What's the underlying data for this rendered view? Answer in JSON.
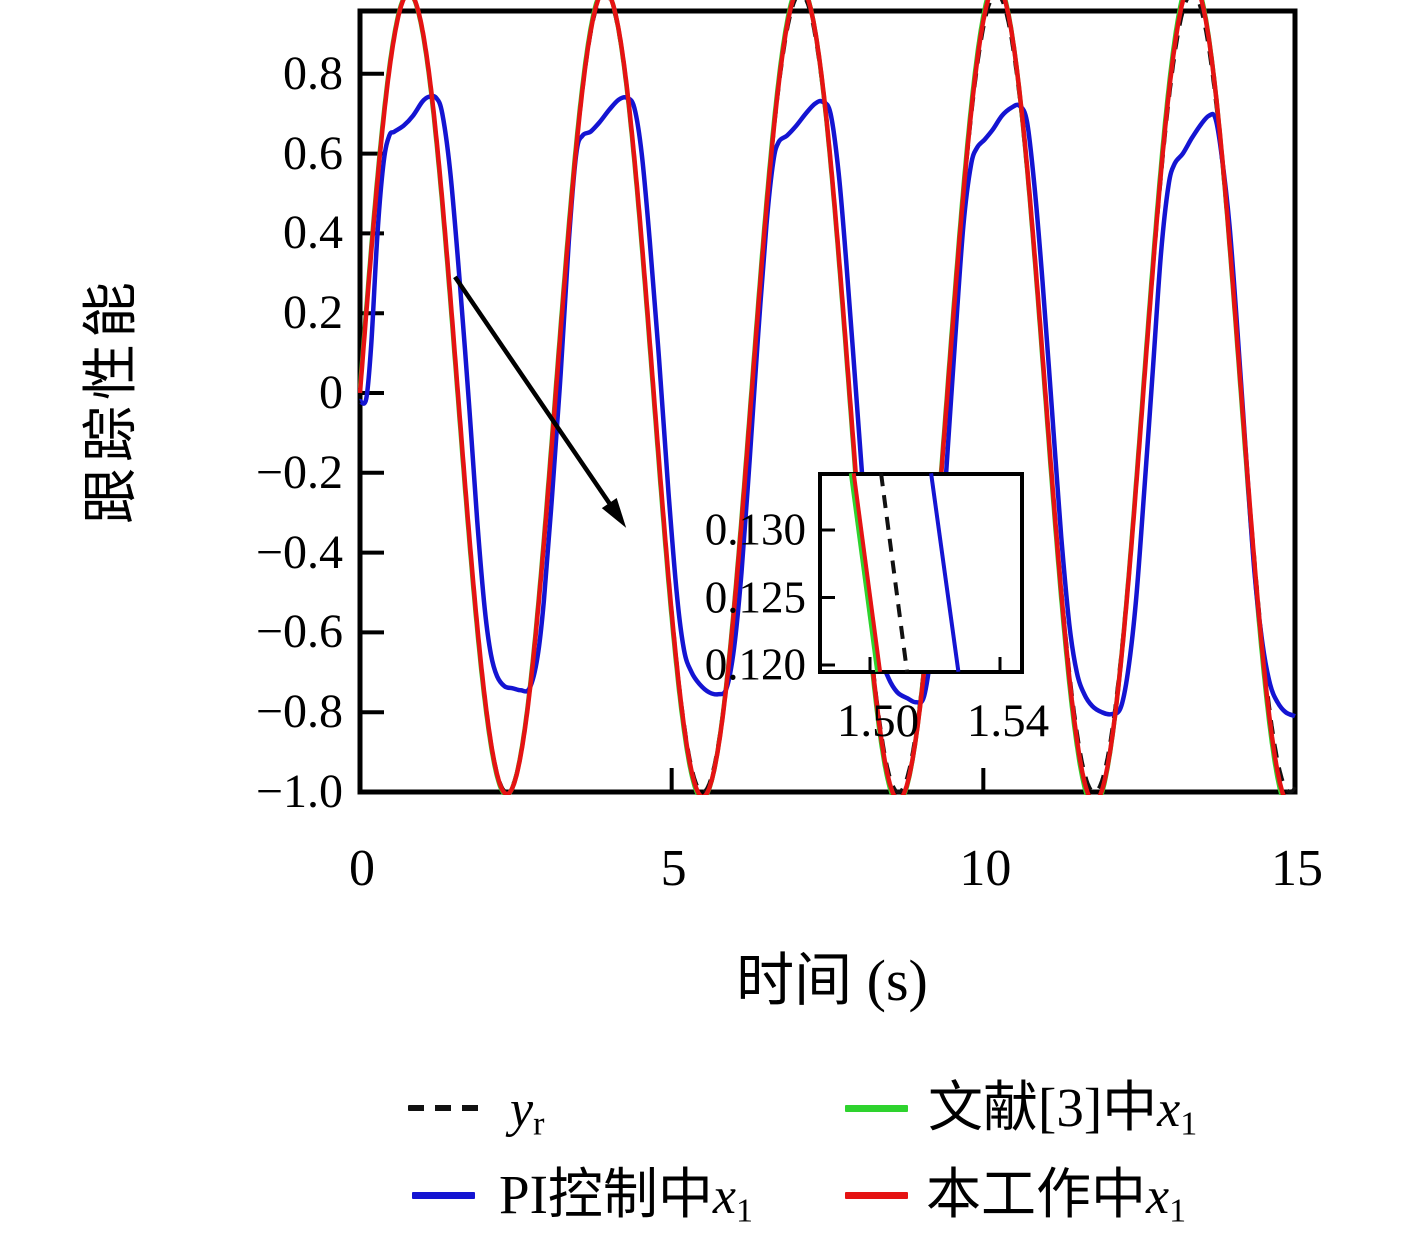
{
  "colors": {
    "reference_dashed": "#111111",
    "ref3_green": "#2ed32e",
    "pi_blue": "#1414d2",
    "thiswork_red": "#e51313",
    "axis": "#000000"
  },
  "axes": {
    "xlabel": "时间 (s)",
    "ylabel": "跟踪性能",
    "xlim": [
      0,
      15
    ],
    "ylim": [
      -1.0,
      0.957
    ],
    "x_ticks": [
      {
        "label": "0",
        "value": 0,
        "mark": false
      },
      {
        "label": "5",
        "value": 5,
        "mark": true
      },
      {
        "label": "10",
        "value": 10,
        "mark": true
      },
      {
        "label": "15",
        "value": 15,
        "mark": false
      }
    ],
    "y_ticks": [
      {
        "label": "0.8",
        "value": 0.8,
        "mark": true
      },
      {
        "label": "0.6",
        "value": 0.6,
        "mark": true
      },
      {
        "label": "0.4",
        "value": 0.4,
        "mark": true
      },
      {
        "label": "0.2",
        "value": 0.2,
        "mark": true
      },
      {
        "label": "0",
        "value": 0.0,
        "mark": true
      },
      {
        "label": "−0.2",
        "value": -0.2,
        "mark": true
      },
      {
        "label": "−0.4",
        "value": -0.4,
        "mark": true
      },
      {
        "label": "−0.6",
        "value": -0.6,
        "mark": true
      },
      {
        "label": "−0.8",
        "value": -0.8,
        "mark": true
      },
      {
        "label": "−1.0",
        "value": -1.0,
        "mark": false
      }
    ]
  },
  "legend": {
    "items": [
      {
        "pre": "",
        "var": "y",
        "sub": "r",
        "style": "dashed",
        "color": "#111111"
      },
      {
        "pre": "文献[3]中",
        "var": "x",
        "sub": "1",
        "style": "solid",
        "color": "#2ed32e"
      },
      {
        "pre": "PI控制中",
        "var": "x",
        "sub": "1",
        "style": "solid",
        "color": "#1414d2"
      },
      {
        "pre": "本工作中",
        "var": "x",
        "sub": "1",
        "style": "solid",
        "color": "#e51313"
      }
    ]
  },
  "chart_data": {
    "type": "line",
    "title": "",
    "xlabel": "时间 (s)",
    "ylabel": "跟踪性能",
    "xlim": [
      0,
      15
    ],
    "ylim": [
      -1.0,
      0.957
    ],
    "grid": false,
    "legend_position": "below",
    "series": [
      {
        "name": "y_r",
        "style": "dashed",
        "color": "#111111",
        "function": "sin(2t)",
        "params": {
          "amp0": 1.0,
          "amp_growth": 0.0,
          "omega": 2.0,
          "phase": 0.0
        }
      },
      {
        "name": "文献[3]中x_1",
        "style": "solid",
        "color": "#2ed32e",
        "function": "(1+0.003t)·sin(2t+0.012), near-perfect tracking of sin(2t)",
        "params": {
          "amp0": 1.0,
          "amp_growth": 0.003,
          "omega": 2.0,
          "phase": 0.012
        }
      },
      {
        "name": "PI控制中x_1",
        "style": "solid",
        "color": "#1414d2",
        "function": "distorted sine, amplitude ≈0.74 decaying to 0.70, lagging reference",
        "keypoints": [
          [
            0,
            -0.02
          ],
          [
            0.1,
            -0.015
          ],
          [
            0.18,
            0.12
          ],
          [
            0.28,
            0.4
          ],
          [
            0.38,
            0.58
          ],
          [
            0.47,
            0.645
          ],
          [
            0.55,
            0.655
          ],
          [
            0.7,
            0.67
          ],
          [
            0.85,
            0.695
          ],
          [
            1.0,
            0.73
          ],
          [
            1.1,
            0.742
          ],
          [
            1.22,
            0.74
          ],
          [
            1.32,
            0.7
          ],
          [
            1.45,
            0.55
          ],
          [
            1.6,
            0.28
          ],
          [
            1.75,
            -0.03
          ],
          [
            1.88,
            -0.32
          ],
          [
            2.0,
            -0.54
          ],
          [
            2.1,
            -0.655
          ],
          [
            2.2,
            -0.71
          ],
          [
            2.32,
            -0.735
          ],
          [
            2.45,
            -0.74
          ],
          [
            2.58,
            -0.745
          ],
          [
            2.72,
            -0.74
          ],
          [
            2.85,
            -0.66
          ],
          [
            2.95,
            -0.52
          ],
          [
            3.08,
            -0.26
          ],
          [
            3.22,
            0.05
          ],
          [
            3.35,
            0.38
          ],
          [
            3.47,
            0.6
          ],
          [
            3.57,
            0.645
          ],
          [
            3.7,
            0.655
          ],
          [
            3.85,
            0.68
          ],
          [
            4.0,
            0.71
          ],
          [
            4.15,
            0.735
          ],
          [
            4.28,
            0.74
          ],
          [
            4.4,
            0.715
          ],
          [
            4.52,
            0.6
          ],
          [
            4.65,
            0.38
          ],
          [
            4.8,
            0.08
          ],
          [
            4.95,
            -0.25
          ],
          [
            5.08,
            -0.5
          ],
          [
            5.2,
            -0.645
          ],
          [
            5.32,
            -0.7
          ],
          [
            5.45,
            -0.73
          ],
          [
            5.6,
            -0.75
          ],
          [
            5.75,
            -0.755
          ],
          [
            5.88,
            -0.74
          ],
          [
            6.0,
            -0.64
          ],
          [
            6.12,
            -0.45
          ],
          [
            6.25,
            -0.17
          ],
          [
            6.38,
            0.13
          ],
          [
            6.52,
            0.42
          ],
          [
            6.63,
            0.58
          ],
          [
            6.72,
            0.63
          ],
          [
            6.85,
            0.645
          ],
          [
            7.0,
            0.67
          ],
          [
            7.15,
            0.7
          ],
          [
            7.3,
            0.725
          ],
          [
            7.42,
            0.73
          ],
          [
            7.55,
            0.7
          ],
          [
            7.68,
            0.55
          ],
          [
            7.8,
            0.33
          ],
          [
            7.95,
            0.02
          ],
          [
            8.1,
            -0.3
          ],
          [
            8.22,
            -0.52
          ],
          [
            8.35,
            -0.655
          ],
          [
            8.48,
            -0.715
          ],
          [
            8.62,
            -0.75
          ],
          [
            8.78,
            -0.765
          ],
          [
            8.92,
            -0.775
          ],
          [
            9.05,
            -0.76
          ],
          [
            9.18,
            -0.63
          ],
          [
            9.3,
            -0.44
          ],
          [
            9.42,
            -0.16
          ],
          [
            9.55,
            0.14
          ],
          [
            9.68,
            0.42
          ],
          [
            9.8,
            0.57
          ],
          [
            9.9,
            0.615
          ],
          [
            10.02,
            0.635
          ],
          [
            10.15,
            0.66
          ],
          [
            10.3,
            0.695
          ],
          [
            10.45,
            0.715
          ],
          [
            10.58,
            0.72
          ],
          [
            10.7,
            0.68
          ],
          [
            10.82,
            0.52
          ],
          [
            10.95,
            0.28
          ],
          [
            11.1,
            -0.04
          ],
          [
            11.25,
            -0.36
          ],
          [
            11.38,
            -0.58
          ],
          [
            11.5,
            -0.7
          ],
          [
            11.62,
            -0.755
          ],
          [
            11.75,
            -0.785
          ],
          [
            11.9,
            -0.8
          ],
          [
            12.05,
            -0.805
          ],
          [
            12.2,
            -0.79
          ],
          [
            12.32,
            -0.7
          ],
          [
            12.45,
            -0.52
          ],
          [
            12.58,
            -0.25
          ],
          [
            12.72,
            0.06
          ],
          [
            12.85,
            0.35
          ],
          [
            12.97,
            0.52
          ],
          [
            13.07,
            0.575
          ],
          [
            13.2,
            0.6
          ],
          [
            13.35,
            0.64
          ],
          [
            13.5,
            0.675
          ],
          [
            13.62,
            0.695
          ],
          [
            13.72,
            0.69
          ],
          [
            13.82,
            0.6
          ],
          [
            13.95,
            0.42
          ],
          [
            14.08,
            0.15
          ],
          [
            14.22,
            -0.17
          ],
          [
            14.35,
            -0.45
          ],
          [
            14.48,
            -0.63
          ],
          [
            14.6,
            -0.73
          ],
          [
            14.72,
            -0.775
          ],
          [
            14.85,
            -0.8
          ],
          [
            15.0,
            -0.81
          ]
        ]
      },
      {
        "name": "本工作中x_1",
        "style": "solid",
        "color": "#e51313",
        "function": "(1+0.0022t)·sin(2t), tracks sin(2t) with tiny growing overshoot",
        "params": {
          "amp0": 1.0,
          "amp_growth": 0.0022,
          "omega": 2.0,
          "phase": 0.0
        }
      }
    ],
    "inset": {
      "xlim": [
        1.4846,
        1.5468
      ],
      "ylim": [
        0.1195,
        0.1342
      ],
      "x_ticks": [
        {
          "label": "1.50",
          "value": 1.5
        },
        {
          "label": "1.54",
          "value": 1.54
        }
      ],
      "y_ticks": [
        {
          "label": "0.130",
          "value": 0.13
        },
        {
          "label": "0.125",
          "value": 0.125
        },
        {
          "label": "0.120",
          "value": 0.12
        }
      ],
      "lines": [
        {
          "name": "ref3_green",
          "color": "#2ed32e",
          "style": "solid",
          "t": [
            1.4941,
            1.5022
          ],
          "v": [
            0.1342,
            0.1195
          ]
        },
        {
          "name": "thiswork_red",
          "color": "#e51313",
          "style": "solid",
          "t": [
            1.495,
            1.5031
          ],
          "v": [
            0.1342,
            0.1195
          ]
        },
        {
          "name": "reference_dashed",
          "color": "#111111",
          "style": "dashed",
          "t": [
            1.5034,
            1.5114
          ],
          "v": [
            0.1342,
            0.1195
          ]
        },
        {
          "name": "pi_blue",
          "color": "#1414d2",
          "style": "solid",
          "t": [
            1.5188,
            1.5272
          ],
          "v": [
            0.1342,
            0.1195
          ]
        }
      ]
    },
    "annotation_arrow": {
      "from": [
        1.524,
        0.291
      ],
      "to": [
        4.27,
        -0.338
      ]
    }
  }
}
